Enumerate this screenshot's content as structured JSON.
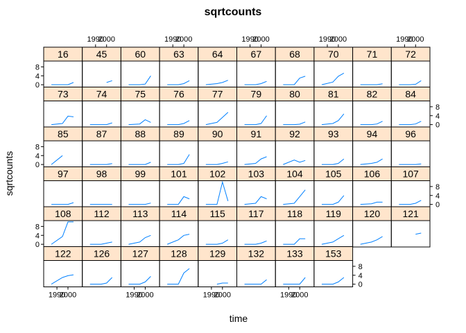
{
  "chart_data": {
    "type": "line",
    "title": "sqrtcounts",
    "xlabel": "time",
    "ylabel": "sqrtcounts",
    "x_tick_labels": [
      "1990",
      "2000"
    ],
    "y_tick_labels": [
      "0",
      "4",
      "8"
    ],
    "x_ticks": [
      1990,
      2000
    ],
    "y_ticks": [
      0,
      4,
      8
    ],
    "xlim": [
      1978,
      2013
    ],
    "ylim": [
      -1.2,
      10.6
    ],
    "layout": {
      "columns": 10,
      "rows": 6,
      "top_row_first": true
    },
    "colors": {
      "strip": "#ffe5cc",
      "line": "#0080ff"
    },
    "x": [
      1985,
      1995,
      2000,
      2005
    ],
    "panels": [
      {
        "name": "16",
        "values": [
          0,
          0,
          0,
          1.0
        ]
      },
      {
        "name": "45",
        "values": [
          null,
          null,
          1.0,
          1.8
        ]
      },
      {
        "name": "60",
        "values": [
          0,
          0,
          0.3,
          4.0
        ]
      },
      {
        "name": "63",
        "values": [
          0,
          0,
          0.5,
          1.8
        ]
      },
      {
        "name": "64",
        "values": [
          0,
          0.5,
          1.0,
          2.0
        ]
      },
      {
        "name": "67",
        "values": [
          0,
          0,
          0.5,
          1.5
        ]
      },
      {
        "name": "68",
        "values": [
          0,
          0,
          3.0,
          3.8
        ]
      },
      {
        "name": "70",
        "values": [
          0,
          1.2,
          3.8,
          5.2
        ]
      },
      {
        "name": "71",
        "values": [
          0,
          0,
          0,
          0.4
        ]
      },
      {
        "name": "72",
        "values": [
          0,
          0,
          0.2,
          1.8
        ]
      },
      {
        "name": "73",
        "values": [
          0,
          0.5,
          3.8,
          3.5
        ]
      },
      {
        "name": "74",
        "values": [
          0,
          0,
          0,
          0.8
        ]
      },
      {
        "name": "75",
        "values": [
          0,
          0.3,
          2.2,
          1.0
        ]
      },
      {
        "name": "76",
        "values": [
          0,
          0,
          0.5,
          1.8
        ]
      },
      {
        "name": "77",
        "values": [
          0,
          1.0,
          3.2,
          5.5
        ]
      },
      {
        "name": "79",
        "values": [
          0,
          0,
          0.5,
          4.0
        ]
      },
      {
        "name": "80",
        "values": [
          0,
          0,
          0.2,
          1.2
        ]
      },
      {
        "name": "81",
        "values": [
          0,
          0.5,
          1.8,
          4.8
        ]
      },
      {
        "name": "82",
        "values": [
          0,
          0,
          0.3,
          1.5
        ]
      },
      {
        "name": "84",
        "values": [
          0,
          0,
          0.3,
          1.5
        ]
      },
      {
        "name": "85",
        "values": [
          0,
          4.0,
          null,
          null
        ]
      },
      {
        "name": "87",
        "values": [
          0,
          0,
          0,
          0.4
        ]
      },
      {
        "name": "88",
        "values": [
          0,
          0,
          0,
          1.0
        ]
      },
      {
        "name": "89",
        "values": [
          0,
          0,
          0.5,
          4.5
        ]
      },
      {
        "name": "90",
        "values": [
          0,
          0,
          0.5,
          1.2
        ]
      },
      {
        "name": "91",
        "values": [
          0,
          0.5,
          2.5,
          3.5
        ]
      },
      {
        "name": "92",
        "values": [
          0,
          2.0,
          1.0,
          1.8
        ]
      },
      {
        "name": "93",
        "values": [
          0,
          0,
          0.5,
          2.5
        ]
      },
      {
        "name": "94",
        "values": [
          0,
          0.5,
          1.0,
          2.5
        ]
      },
      {
        "name": "96",
        "values": [
          0,
          0,
          0,
          0.3
        ]
      },
      {
        "name": "97",
        "values": [
          0,
          0,
          0,
          0.8
        ]
      },
      {
        "name": "98",
        "values": [
          0,
          0,
          0,
          0
        ]
      },
      {
        "name": "99",
        "values": [
          0,
          0,
          0,
          0.6
        ]
      },
      {
        "name": "101",
        "values": [
          0,
          0,
          3.5,
          2.5
        ]
      },
      {
        "name": "102",
        "values": [
          0,
          0,
          10.0,
          1.5
        ]
      },
      {
        "name": "103",
        "values": [
          0,
          0.5,
          3.5,
          2.5
        ]
      },
      {
        "name": "104",
        "values": [
          0,
          0.5,
          3.5,
          6.5
        ]
      },
      {
        "name": "105",
        "values": [
          0,
          0,
          1.0,
          4.0
        ]
      },
      {
        "name": "106",
        "values": [
          0,
          0.3,
          1.0,
          1.0
        ]
      },
      {
        "name": "107",
        "values": [
          0,
          0,
          0.5,
          1.8
        ]
      },
      {
        "name": "108",
        "values": [
          0,
          3.5,
          10.0,
          10.0
        ]
      },
      {
        "name": "112",
        "values": [
          0,
          0,
          0.5,
          1.0
        ]
      },
      {
        "name": "113",
        "values": [
          0,
          1.0,
          3.0,
          4.0
        ]
      },
      {
        "name": "114",
        "values": [
          0,
          2.0,
          4.0,
          4.5
        ]
      },
      {
        "name": "115",
        "values": [
          0,
          0,
          0.5,
          2.0
        ]
      },
      {
        "name": "117",
        "values": [
          0,
          0,
          0.5,
          1.5
        ]
      },
      {
        "name": "118",
        "values": [
          0,
          0,
          2.5,
          2.5
        ]
      },
      {
        "name": "119",
        "values": [
          0,
          1.0,
          2.5,
          4.0
        ]
      },
      {
        "name": "120",
        "values": [
          0,
          1.0,
          2.0,
          3.5
        ]
      },
      {
        "name": "121",
        "values": [
          null,
          null,
          4.5,
          5.0
        ]
      },
      {
        "name": "122",
        "values": [
          0,
          3.0,
          3.8,
          4.2
        ]
      },
      {
        "name": "126",
        "values": [
          0,
          0,
          0.5,
          3.0
        ]
      },
      {
        "name": "127",
        "values": [
          0,
          0,
          1.0,
          3.5
        ]
      },
      {
        "name": "128",
        "values": [
          0,
          0,
          5.0,
          7.0
        ]
      },
      {
        "name": "129",
        "values": [
          null,
          0,
          0.5,
          0.5
        ]
      },
      {
        "name": "132",
        "values": [
          0,
          0,
          0,
          2.0
        ]
      },
      {
        "name": "133",
        "values": [
          0,
          0,
          0,
          3.0
        ]
      },
      {
        "name": "153",
        "values": [
          0,
          0,
          1.0,
          3.0
        ]
      }
    ]
  }
}
